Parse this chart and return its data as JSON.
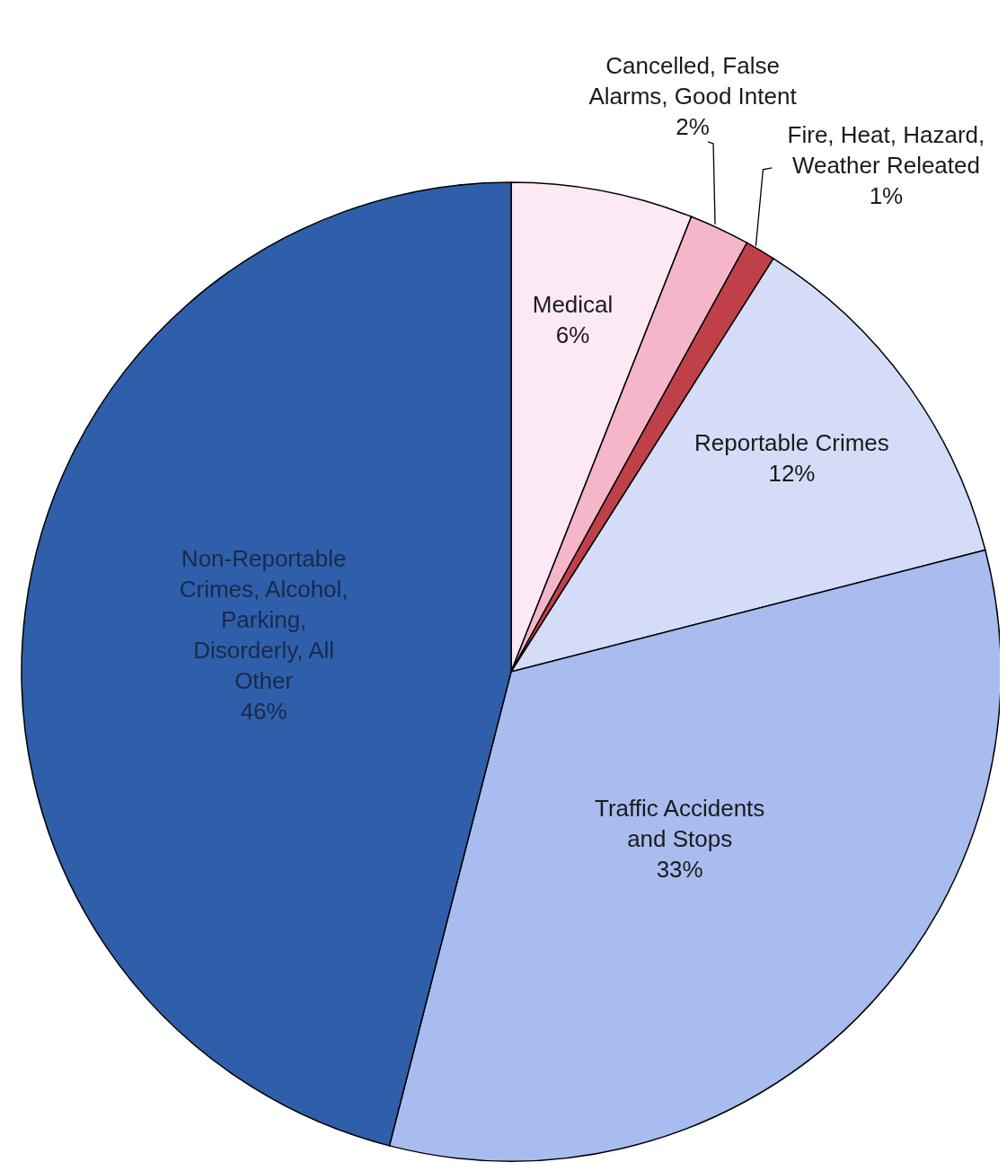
{
  "chart_data": {
    "type": "pie",
    "categories": [
      "Medical",
      "Cancelled, False Alarms, Good Intent",
      "Fire, Heat, Hazard, Weather Releated",
      "Reportable Crimes",
      "Traffic Accidents and Stops",
      "Non-Reportable Crimes, Alcohol, Parking, Disorderly, All Other"
    ],
    "values": [
      6,
      2,
      1,
      12,
      33,
      46
    ],
    "value_labels": [
      "6%",
      "2%",
      "1%",
      "12%",
      "33%",
      "46%"
    ],
    "colors": [
      "#fde8f5",
      "#f4b6c8",
      "#c0404a",
      "#d4dcf7",
      "#a8bcef",
      "#2f5fab"
    ]
  }
}
